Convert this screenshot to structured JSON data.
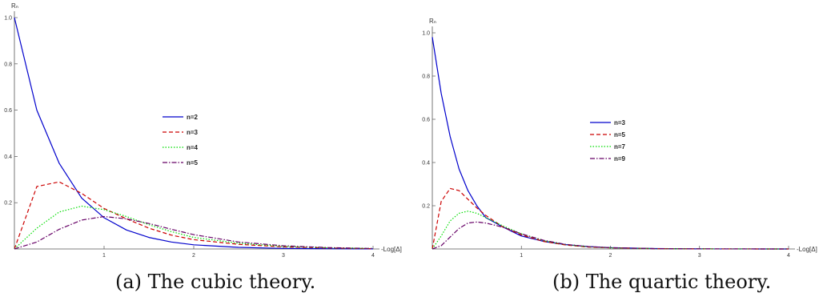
{
  "chart_data": [
    {
      "type": "line",
      "caption": "(a) The cubic theory.",
      "xlabel": "-Log[Δ]",
      "ylabel": "Rₙ",
      "xlim": [
        0,
        4
      ],
      "ylim": [
        0,
        1.0
      ],
      "x_ticks": [
        "1",
        "2",
        "3",
        "4"
      ],
      "y_ticks": [
        "0.2",
        "0.4",
        "0.6",
        "0.8",
        "1.0"
      ],
      "legend_position": "center",
      "x": [
        0,
        0.25,
        0.5,
        0.75,
        1.0,
        1.25,
        1.5,
        1.75,
        2.0,
        2.5,
        3.0,
        3.5,
        4.0
      ],
      "series": [
        {
          "name": "n=2",
          "color": "#0000cc",
          "dash": "solid",
          "values": [
            1.0,
            0.6,
            0.37,
            0.22,
            0.135,
            0.082,
            0.05,
            0.03,
            0.018,
            0.007,
            0.0025,
            0.001,
            0.0003
          ]
        },
        {
          "name": "n=3",
          "color": "#cc0000",
          "dash": "dashed",
          "values": [
            0,
            0.27,
            0.29,
            0.24,
            0.175,
            0.13,
            0.09,
            0.06,
            0.04,
            0.02,
            0.009,
            0.004,
            0.001
          ]
        },
        {
          "name": "n=4",
          "color": "#00dd00",
          "dash": "dotted",
          "values": [
            0,
            0.09,
            0.16,
            0.185,
            0.17,
            0.14,
            0.105,
            0.075,
            0.05,
            0.025,
            0.011,
            0.005,
            0.002
          ]
        },
        {
          "name": "n=5",
          "color": "#660066",
          "dash": "dashdot",
          "values": [
            0,
            0.03,
            0.085,
            0.125,
            0.14,
            0.13,
            0.11,
            0.085,
            0.062,
            0.03,
            0.014,
            0.006,
            0.002
          ]
        }
      ]
    },
    {
      "type": "line",
      "caption": "(b) The quartic theory.",
      "xlabel": "-Log[Δ]",
      "ylabel": "Rₙ",
      "xlim": [
        0,
        4
      ],
      "ylim": [
        0,
        1.0
      ],
      "x_ticks": [
        "1",
        "2",
        "3",
        "4"
      ],
      "y_ticks": [
        "0.2",
        "0.4",
        "0.6",
        "0.8",
        "1.0"
      ],
      "legend_position": "center",
      "x": [
        0,
        0.1,
        0.2,
        0.3,
        0.4,
        0.5,
        0.6,
        0.8,
        1.0,
        1.25,
        1.5,
        1.75,
        2.0,
        2.5,
        3.0,
        4.0
      ],
      "series": [
        {
          "name": "n=3",
          "color": "#0000cc",
          "dash": "solid",
          "values": [
            0.98,
            0.72,
            0.52,
            0.37,
            0.27,
            0.2,
            0.145,
            0.1,
            0.06,
            0.035,
            0.02,
            0.011,
            0.006,
            0.002,
            0.0005,
            0
          ]
        },
        {
          "name": "n=5",
          "color": "#cc0000",
          "dash": "dashed",
          "values": [
            0,
            0.22,
            0.28,
            0.27,
            0.23,
            0.19,
            0.155,
            0.1,
            0.065,
            0.035,
            0.018,
            0.009,
            0.005,
            0.0015,
            0.0005,
            0
          ]
        },
        {
          "name": "n=7",
          "color": "#00dd00",
          "dash": "dotted",
          "values": [
            0,
            0.06,
            0.13,
            0.165,
            0.175,
            0.165,
            0.145,
            0.105,
            0.07,
            0.038,
            0.02,
            0.01,
            0.005,
            0.0015,
            0.0005,
            0
          ]
        },
        {
          "name": "n=9",
          "color": "#660066",
          "dash": "dashdot",
          "values": [
            0,
            0.015,
            0.055,
            0.095,
            0.12,
            0.125,
            0.12,
            0.1,
            0.07,
            0.04,
            0.021,
            0.011,
            0.006,
            0.0015,
            0.0005,
            0
          ]
        }
      ]
    }
  ]
}
